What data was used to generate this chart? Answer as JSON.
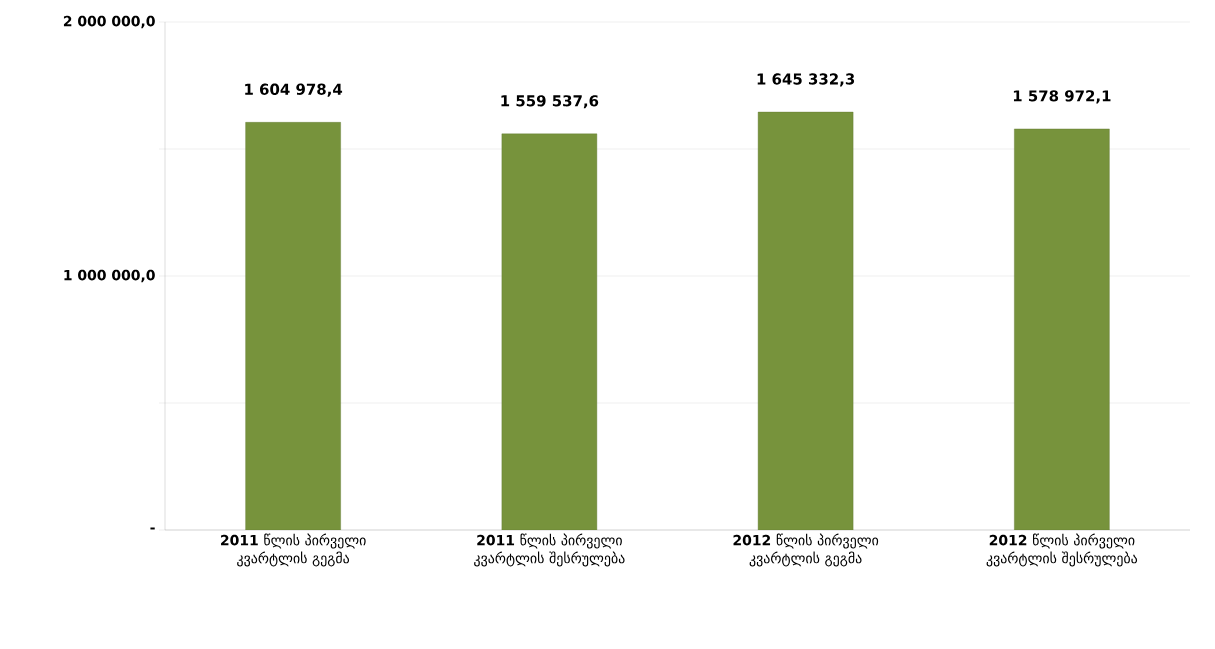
{
  "chart_data": {
    "type": "bar",
    "categories": [
      "**2011** წლის პირველი კვარტლის გეგმა",
      "**2011** წლის პირველი კვარტლის შესრულება",
      "**2012** წლის პირველი კვარტლის გეგმა",
      "**2012** წლის პირველი კვარტლის შესრულება"
    ],
    "values": [
      1604978.4,
      1559537.6,
      1645332.3,
      1578972.1
    ],
    "value_labels": [
      "1 604 978,4",
      "1 559 537,6",
      "1 645 332,3",
      "1 578 972,1"
    ],
    "color": "#77933c",
    "ylim": [
      0,
      2000000
    ],
    "yticks": [
      {
        "value": 0,
        "label": "-"
      },
      {
        "value": 500000,
        "label": null
      },
      {
        "value": 1000000,
        "label": "1 000 000,0"
      },
      {
        "value": 1500000,
        "label": null
      },
      {
        "value": 2000000,
        "label": "2 000 000,0"
      }
    ],
    "grid": "y"
  }
}
